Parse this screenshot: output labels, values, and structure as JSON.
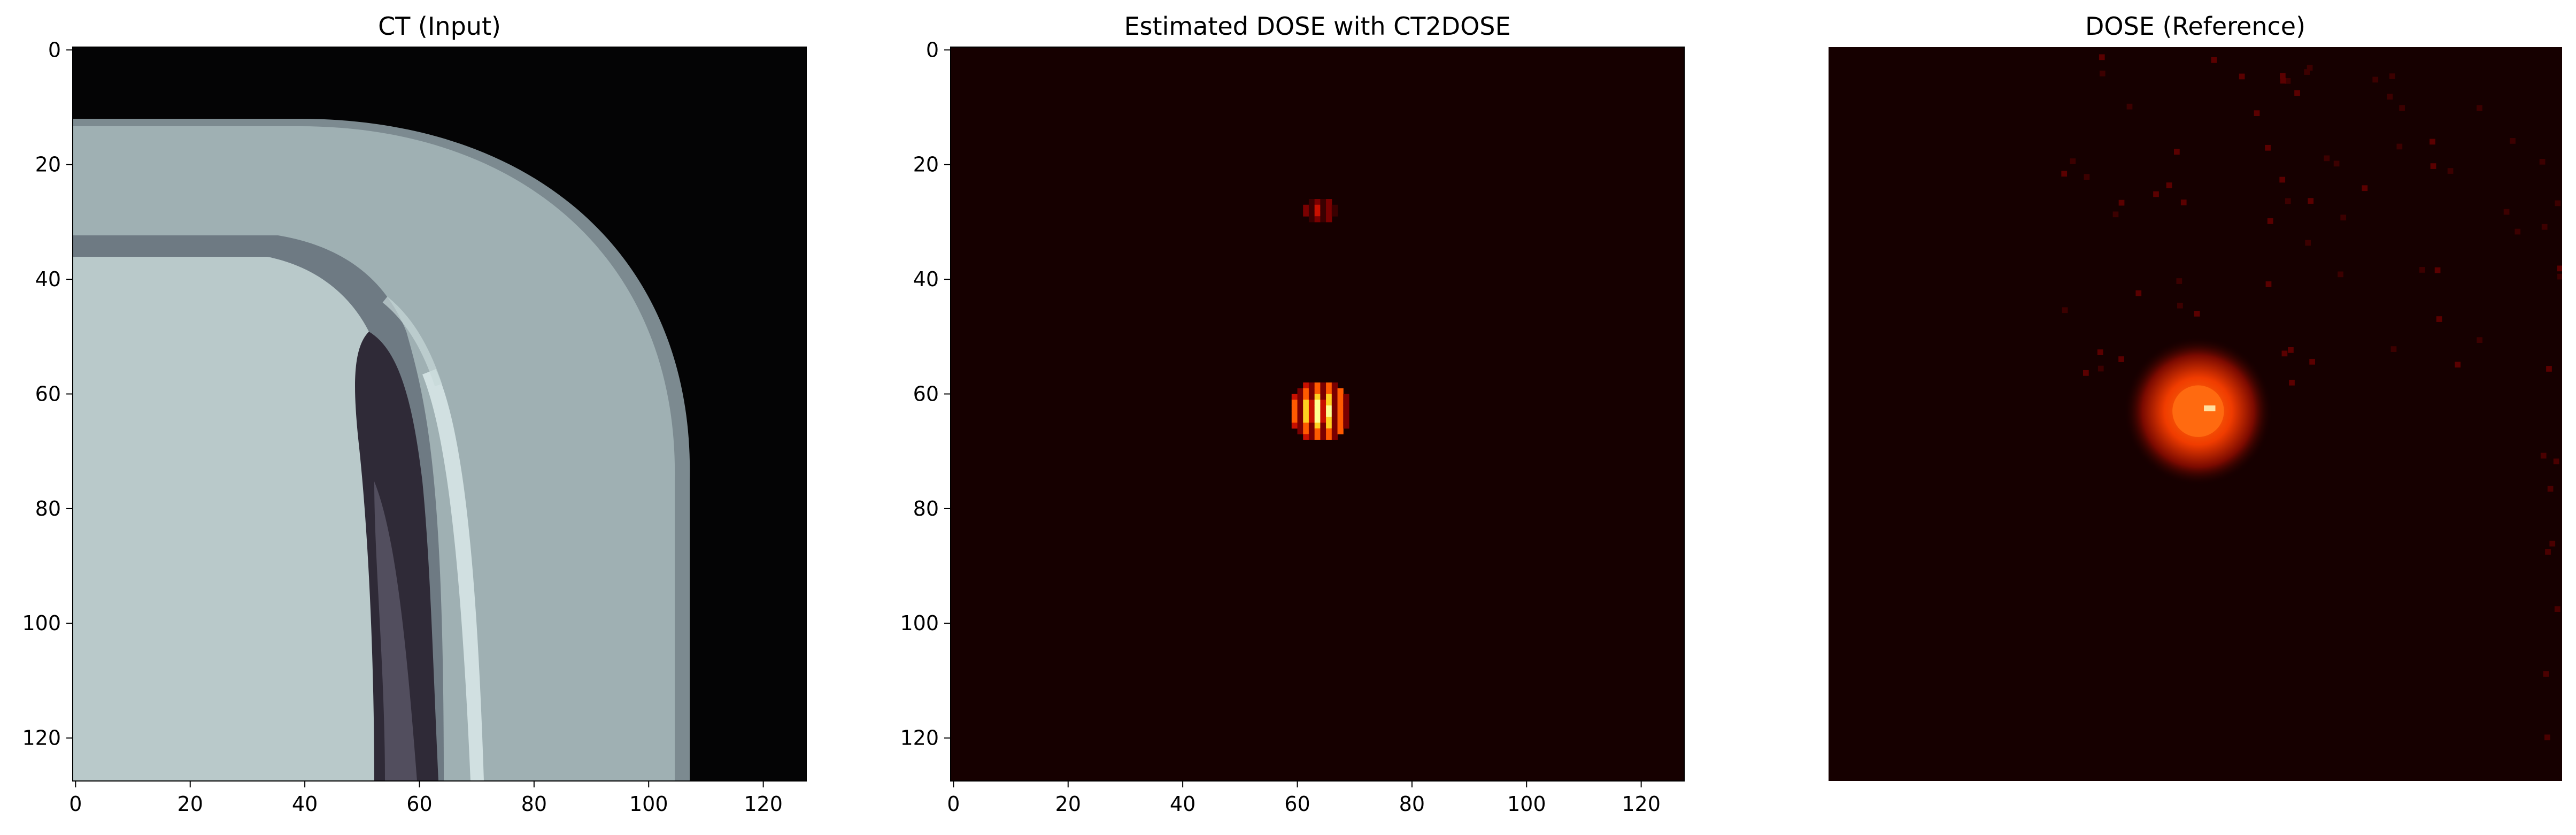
{
  "chart_data": [
    {
      "type": "heatmap",
      "title": "CT (Input)",
      "colormap": "bone",
      "xlim": [
        0,
        127
      ],
      "ylim": [
        127,
        0
      ],
      "x_ticks": [
        "0",
        "20",
        "40",
        "60",
        "80",
        "100",
        "120"
      ],
      "y_ticks": [
        "0",
        "20",
        "40",
        "60",
        "80",
        "100",
        "120"
      ],
      "axes_visible": true,
      "content": "CT slice: curved bright skull band from top edge (row ~12) sweeping down to bottom right, dark air region with tissue texture along cols ~40-60, uniform bright-grey interior left of the band"
    },
    {
      "type": "heatmap",
      "title": "Estimated DOSE with CT2DOSE",
      "colormap": "hot",
      "xlim": [
        0,
        127
      ],
      "ylim": [
        127,
        0
      ],
      "x_ticks": [
        "0",
        "20",
        "40",
        "60",
        "80",
        "100",
        "120"
      ],
      "y_ticks": [
        "0",
        "20",
        "40",
        "60",
        "80",
        "100",
        "120"
      ],
      "axes_visible": true,
      "hotspots": [
        {
          "x": 64,
          "y": 28,
          "intensity": 0.35,
          "width": 6,
          "height": 4
        },
        {
          "x": 64,
          "y": 63,
          "intensity": 1.0,
          "width": 10,
          "height": 10
        }
      ]
    },
    {
      "type": "heatmap",
      "title": "DOSE (Reference)",
      "colormap": "hot",
      "axes_visible": false,
      "hotspots": [
        {
          "x": 64,
          "y": 63,
          "intensity": 0.9,
          "radius": 5
        }
      ]
    }
  ],
  "colors": {
    "dose_background": "#160000",
    "ct_background": "#040405",
    "bone_bright": "#b8c9c9",
    "bone_mid": "#8f9ea2"
  }
}
